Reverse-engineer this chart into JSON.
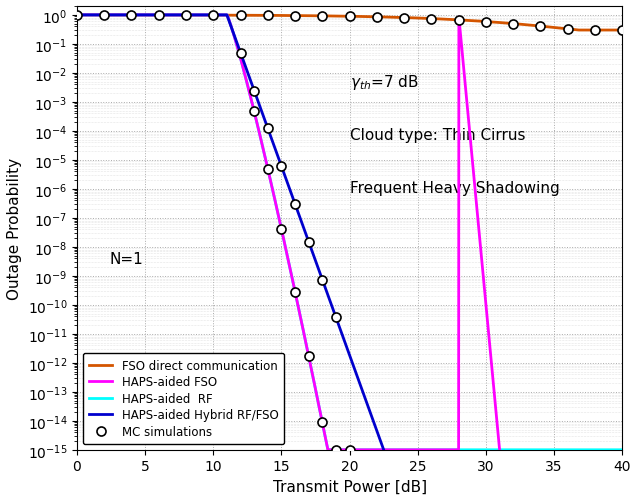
{
  "xlabel": "Transmit Power [dB]",
  "ylabel": "Outage Probability",
  "xlim": [
    0,
    40
  ],
  "fso_color": "#D45500",
  "haps_fso_color": "#FF00FF",
  "haps_rf_color": "#00FFFF",
  "haps_hybrid_color": "#0000CD",
  "annotation1": "$\\gamma_{th}$=7 dB",
  "annotation2": "Cloud type: Thin Cirrus",
  "annotation3": "Frequent Heavy Shadowing",
  "annotation4": "N=1",
  "legend_labels": [
    "FSO direct communication",
    "HAPS-aided FSO",
    "HAPS-aided  RF",
    "HAPS-aided Hybrid RF/FSO",
    "MC simulations"
  ]
}
